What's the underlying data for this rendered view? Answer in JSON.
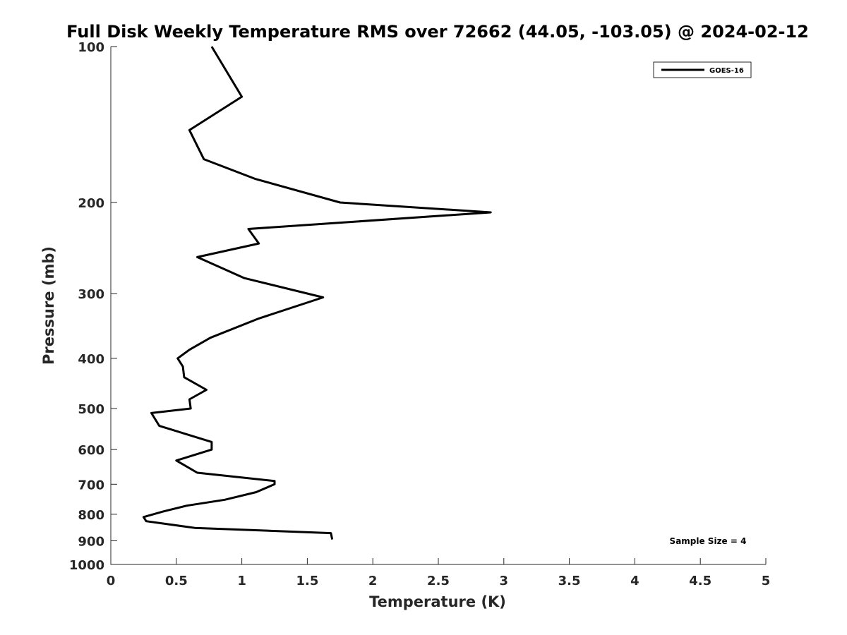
{
  "chart_data": {
    "type": "line",
    "title": "Full Disk Weekly Temperature RMS over 72662 (44.05, -103.05) @ 2024-02-12",
    "xlabel": "Temperature (K)",
    "ylabel": "Pressure (mb)",
    "xlim": [
      0,
      5
    ],
    "ylim": [
      100,
      1000
    ],
    "yscale": "log",
    "y_reversed": true,
    "xticks": [
      "0",
      "0.5",
      "1",
      "1.5",
      "2",
      "2.5",
      "3",
      "3.5",
      "4",
      "4.5",
      "5"
    ],
    "yticks": [
      "100",
      "200",
      "300",
      "400",
      "500",
      "600",
      "700",
      "800",
      "900",
      "1000"
    ],
    "grid": false,
    "legend_position": "top-right",
    "annotation": "Sample Size = 4",
    "series": [
      {
        "name": "GOES-16",
        "color": "#000000",
        "x": [
          0.77,
          1.0,
          0.6,
          0.71,
          1.1,
          1.75,
          2.9,
          1.05,
          1.13,
          0.66,
          1.02,
          1.62,
          1.13,
          0.76,
          0.6,
          0.51,
          0.55,
          0.56,
          0.73,
          0.6,
          0.61,
          0.31,
          0.37,
          0.77,
          0.77,
          0.5,
          0.66,
          1.25,
          1.25,
          1.11,
          0.87,
          0.58,
          0.4,
          0.25,
          0.27,
          0.64,
          1.68,
          1.69
        ],
        "y": [
          100,
          125,
          145,
          165,
          180,
          200,
          209,
          225,
          240,
          255,
          280,
          305,
          335,
          365,
          385,
          400,
          415,
          435,
          460,
          480,
          500,
          510,
          540,
          580,
          600,
          630,
          665,
          690,
          700,
          725,
          750,
          770,
          790,
          810,
          825,
          850,
          870,
          895
        ]
      }
    ]
  }
}
